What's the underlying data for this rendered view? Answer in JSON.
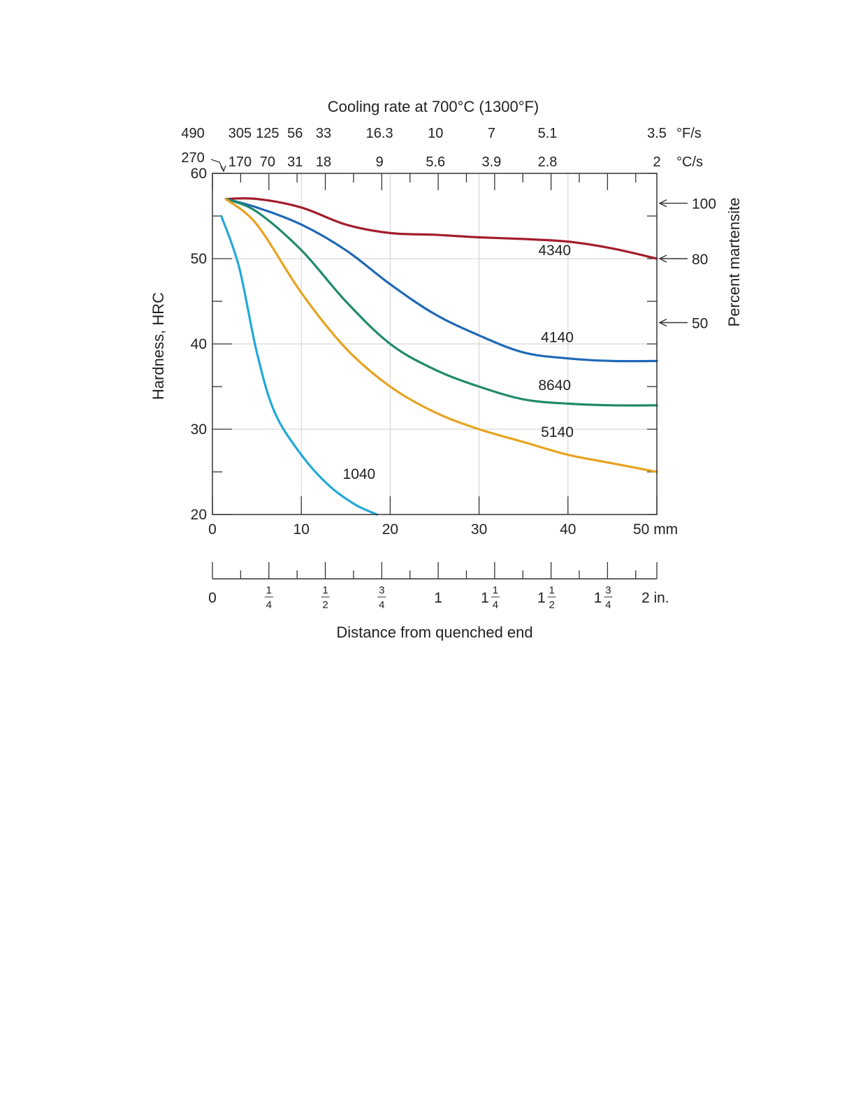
{
  "chart_data": {
    "type": "line",
    "title": "Cooling rate at 700°C (1300°F)",
    "ylabel": "Hardness, HRC",
    "y2label": "Percent martensite",
    "xlabel": "Distance from quenched end",
    "xlim": [
      0,
      50
    ],
    "ylim": [
      20,
      60
    ],
    "grid": true,
    "x_ticks_mm": [
      "0",
      "10",
      "20",
      "30",
      "40",
      "50 mm"
    ],
    "x_tick_values": [
      0,
      10,
      20,
      30,
      40,
      50
    ],
    "y_ticks": [
      "20",
      "30",
      "40",
      "50",
      "60"
    ],
    "y_tick_values": [
      20,
      30,
      40,
      50,
      60
    ],
    "inch_axis": {
      "ticks": [
        {
          "whole": "0",
          "num": "",
          "den": ""
        },
        {
          "whole": "",
          "num": "1",
          "den": "4"
        },
        {
          "whole": "",
          "num": "1",
          "den": "2"
        },
        {
          "whole": "",
          "num": "3",
          "den": "4"
        },
        {
          "whole": "1",
          "num": "",
          "den": ""
        },
        {
          "whole": "1",
          "num": "1",
          "den": "4"
        },
        {
          "whole": "1",
          "num": "1",
          "den": "2"
        },
        {
          "whole": "1",
          "num": "3",
          "den": "4"
        },
        {
          "whole": "2 in.",
          "num": "",
          "den": ""
        }
      ]
    },
    "cooling_rate_F": {
      "unit": "°F/s",
      "labels": [
        "490",
        "305",
        "125",
        "56",
        "33",
        "16.3",
        "10",
        "7",
        "5.1",
        "3.5"
      ]
    },
    "cooling_rate_C": {
      "unit": "°C/s",
      "labels": [
        "270",
        "170",
        "70",
        "31",
        "18",
        "9",
        "5.6",
        "3.9",
        "2.8",
        "2"
      ]
    },
    "martensite": [
      {
        "label": "100",
        "hrc": 56.5
      },
      {
        "label": "80",
        "hrc": 50
      },
      {
        "label": "50",
        "hrc": 42.5
      }
    ],
    "series": [
      {
        "name": "4340",
        "color": "#a31d2c",
        "x": [
          1.5,
          5,
          10,
          15,
          20,
          25,
          30,
          35,
          40,
          45,
          50
        ],
        "y": [
          57,
          57,
          56,
          54,
          53,
          52.8,
          52.5,
          52.3,
          52,
          51.2,
          50
        ]
      },
      {
        "name": "4140",
        "color": "#1f68b5",
        "x": [
          1.5,
          5,
          10,
          15,
          20,
          25,
          30,
          35,
          40,
          45,
          50
        ],
        "y": [
          57,
          56,
          54,
          51,
          47,
          43.5,
          41,
          39,
          38.3,
          38,
          38
        ]
      },
      {
        "name": "8640",
        "color": "#1f8a6a",
        "x": [
          1.5,
          5,
          10,
          15,
          20,
          25,
          30,
          35,
          40,
          45,
          50
        ],
        "y": [
          57,
          55.5,
          51,
          45,
          40,
          37,
          35,
          33.5,
          33,
          32.8,
          32.8
        ]
      },
      {
        "name": "5140",
        "color": "#e7a21f",
        "x": [
          1.5,
          5,
          10,
          15,
          20,
          25,
          30,
          35,
          40,
          45,
          50
        ],
        "y": [
          57,
          54,
          46,
          39.5,
          35,
          32,
          30,
          28.5,
          27,
          26,
          25
        ]
      },
      {
        "name": "1040",
        "color": "#22a8d9",
        "x": [
          1,
          3,
          5,
          7,
          10,
          13,
          16,
          18.5
        ],
        "y": [
          55,
          49,
          39,
          32,
          27,
          23.5,
          21.2,
          20
        ]
      }
    ],
    "series_labels": [
      {
        "name": "4340",
        "x": 38.5,
        "y": 50.4
      },
      {
        "name": "4140",
        "x": 38.8,
        "y": 40.2
      },
      {
        "name": "8640",
        "x": 38.5,
        "y": 34.6
      },
      {
        "name": "5140",
        "x": 38.8,
        "y": 29.1
      },
      {
        "name": "1040",
        "x": 16.5,
        "y": 24.2
      }
    ]
  }
}
